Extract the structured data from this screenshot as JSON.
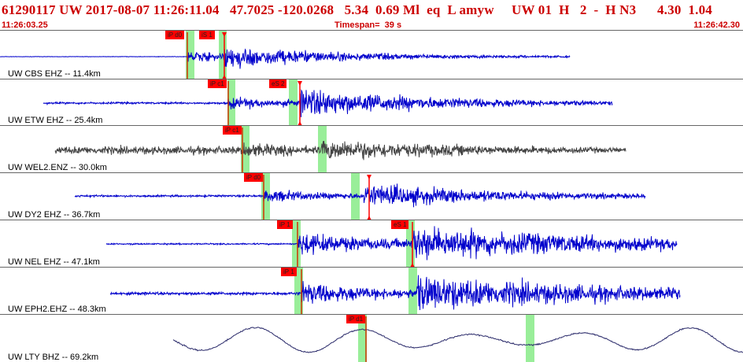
{
  "header": {
    "title": "61290117 UW 2017-08-07 11:26:11.04   47.7025 -120.0268   5.34  0.69 Ml  eq  L amyw     UW 01  H   2  -  H N3      4.30  1.04",
    "start_time": "11:26:03.25",
    "timespan": "Timespan=  39 s",
    "end_time": "11:26:42.30"
  },
  "colors": {
    "title": "#cc0000",
    "trace_blue": "#0000cc",
    "trace_gray": "#444444",
    "trace_navy": "#2a2a6a",
    "pick_flag": "#ff0000",
    "window_green": "#99ee99"
  },
  "traces": [
    {
      "station": "UW CBS EHZ -- 11.4km",
      "picks": [
        "iP d0",
        "iS 1"
      ]
    },
    {
      "station": "UW ETW EHZ -- 25.4km",
      "picks": [
        "iP c1",
        "eS 2"
      ]
    },
    {
      "station": "UW WEL2.ENZ -- 30.0km",
      "picks": [
        "iP c1"
      ]
    },
    {
      "station": "UW DY2 EHZ -- 36.7km",
      "picks": [
        "iP d0"
      ]
    },
    {
      "station": "UW NEL EHZ -- 47.1km",
      "picks": [
        "iP 1",
        "eS 1"
      ]
    },
    {
      "station": "UW EPH2.EHZ -- 48.3km",
      "picks": [
        "iP 1"
      ]
    },
    {
      "station": "UW LTY BHZ -- 69.2km",
      "picks": [
        "iP d1"
      ]
    }
  ]
}
